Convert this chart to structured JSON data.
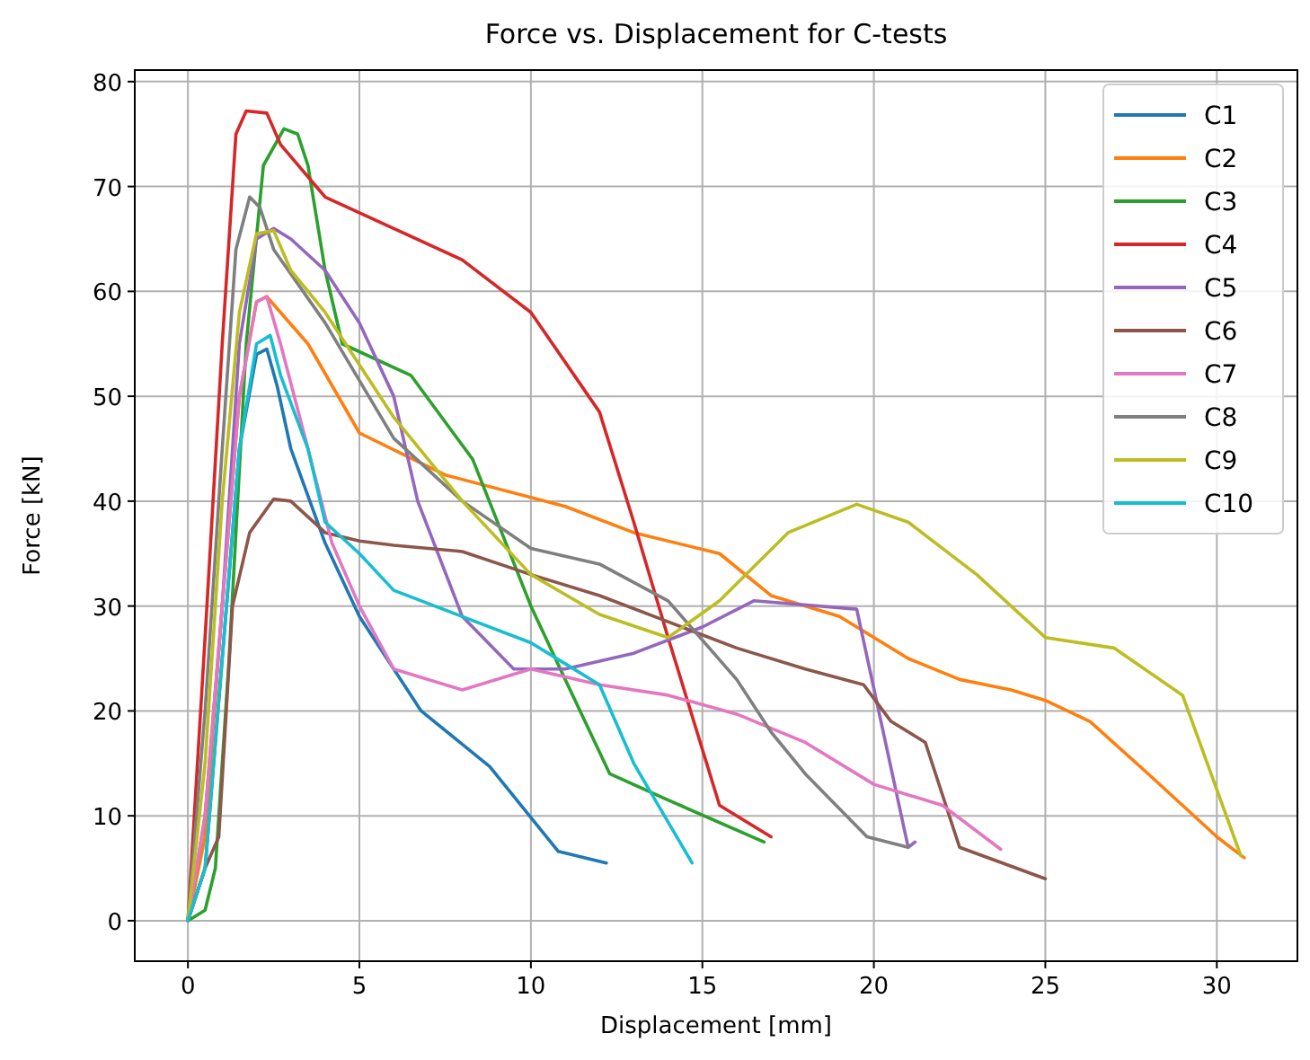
{
  "chart_data": {
    "type": "line",
    "title": "Force vs. Displacement for C-tests",
    "xlabel": "Displacement [mm]",
    "ylabel": "Force [kN]",
    "xlim": [
      -1.55,
      32.35
    ],
    "ylim": [
      -3.86,
      81.1
    ],
    "xticks": [
      0,
      5,
      10,
      15,
      20,
      25,
      30
    ],
    "yticks": [
      0,
      10,
      20,
      30,
      40,
      50,
      60,
      70,
      80
    ],
    "grid": true,
    "legend": "top right",
    "series": [
      {
        "name": "C1",
        "color": "#1f77b4",
        "x": [
          0,
          0.5,
          1,
          1.5,
          2,
          2.3,
          2.6,
          3,
          4,
          5,
          6,
          6.8,
          8.8,
          10.8,
          12.2
        ],
        "values": [
          0,
          5,
          25,
          45,
          54,
          54.5,
          51,
          45,
          36,
          29,
          24,
          20,
          14.7,
          6.6,
          5.5
        ]
      },
      {
        "name": "C2",
        "color": "#ff7f0e",
        "x": [
          0,
          0.5,
          1,
          1.5,
          2,
          2.3,
          3.5,
          5,
          7.5,
          11,
          13,
          15.5,
          17,
          19,
          21,
          22.5,
          24,
          25,
          26.3,
          28,
          30,
          30.8
        ],
        "values": [
          0,
          8,
          30,
          50,
          59,
          59.5,
          55,
          46.5,
          42.5,
          39.5,
          37,
          35,
          31,
          29,
          25,
          23,
          22,
          21,
          19,
          14,
          8,
          6
        ]
      },
      {
        "name": "C3",
        "color": "#2ca02c",
        "x": [
          0,
          0.5,
          0.8,
          1.2,
          1.7,
          2.2,
          2.8,
          3.2,
          3.5,
          4,
          4.5,
          6.5,
          8.3,
          10,
          11,
          12.3,
          14,
          16.8
        ],
        "values": [
          0,
          1,
          5,
          25,
          55,
          72,
          75.5,
          75,
          72,
          62,
          55,
          52,
          44,
          30,
          23,
          14,
          11.5,
          7.5
        ]
      },
      {
        "name": "C4",
        "color": "#d62728",
        "x": [
          0,
          0.5,
          1,
          1.4,
          1.7,
          2.3,
          2.7,
          4,
          5,
          6,
          8,
          10,
          12,
          13,
          14,
          15.5,
          17
        ],
        "values": [
          0,
          27,
          55,
          75,
          77.2,
          77,
          74,
          69,
          67.5,
          66,
          63,
          58,
          48.5,
          38,
          27,
          11,
          8
        ]
      },
      {
        "name": "C5",
        "color": "#9467bd",
        "x": [
          0,
          0.5,
          1,
          1.5,
          2,
          2.5,
          3,
          4,
          5,
          6,
          6.7,
          8,
          9.5,
          11,
          13,
          15,
          16.5,
          19.5,
          21,
          21.2
        ],
        "values": [
          0,
          10,
          30,
          55,
          65,
          66,
          65,
          62,
          57,
          50,
          40,
          29,
          24,
          24,
          25.5,
          28,
          30.5,
          29.7,
          7,
          7.5
        ]
      },
      {
        "name": "C6",
        "color": "#8c564b",
        "x": [
          0,
          0.5,
          0.9,
          1.3,
          1.8,
          2.5,
          3,
          4,
          5,
          6,
          8,
          10,
          12,
          14,
          16,
          18,
          19.7,
          20.5,
          21.5,
          22.5,
          25
        ],
        "values": [
          0,
          5,
          8,
          30,
          37,
          40.2,
          40,
          37,
          36.2,
          35.8,
          35.2,
          33,
          31,
          28.5,
          26,
          24,
          22.5,
          19,
          17,
          7,
          4
        ]
      },
      {
        "name": "C7",
        "color": "#e377c2",
        "x": [
          0,
          0.5,
          1,
          1.5,
          2,
          2.3,
          2.7,
          3.5,
          4.2,
          5,
          6,
          8,
          10,
          12,
          14,
          16,
          18,
          20,
          22,
          23.7
        ],
        "values": [
          0,
          10,
          30,
          50,
          59,
          59.5,
          55,
          45,
          36,
          30,
          24,
          22,
          24,
          22.5,
          21.5,
          19.7,
          17,
          13,
          11,
          6.8
        ]
      },
      {
        "name": "C8",
        "color": "#7f7f7f",
        "x": [
          0,
          0.5,
          1,
          1.4,
          1.8,
          2.1,
          2.5,
          4,
          6,
          8,
          10,
          12,
          14,
          16,
          17,
          18,
          19.8,
          21
        ],
        "values": [
          0,
          20,
          45,
          64,
          69,
          68,
          64,
          57,
          46,
          40,
          35.5,
          34,
          30.5,
          23,
          18,
          14,
          8,
          7
        ]
      },
      {
        "name": "C9",
        "color": "#bcbd22",
        "x": [
          0,
          0.5,
          1,
          1.5,
          2,
          2.5,
          3,
          4,
          6,
          8,
          10,
          12,
          14,
          15.5,
          17.5,
          19.5,
          21,
          23,
          24.5,
          25,
          27,
          29,
          30.7
        ],
        "values": [
          0,
          15,
          40,
          58,
          65.5,
          65.8,
          62,
          58,
          48,
          40,
          33,
          29.2,
          27,
          30.5,
          37,
          39.7,
          38,
          33,
          28.5,
          27,
          26,
          21.5,
          6.2
        ]
      },
      {
        "name": "C10",
        "color": "#17becf",
        "x": [
          0,
          0.5,
          1,
          1.5,
          2,
          2.4,
          2.7,
          3.5,
          4,
          5,
          6,
          8,
          10,
          11,
          12,
          13,
          14.7
        ],
        "values": [
          0,
          5,
          25,
          45,
          55,
          55.8,
          52,
          45,
          38,
          35,
          31.5,
          29,
          26.5,
          24.5,
          22.5,
          15,
          5.5
        ]
      }
    ]
  }
}
